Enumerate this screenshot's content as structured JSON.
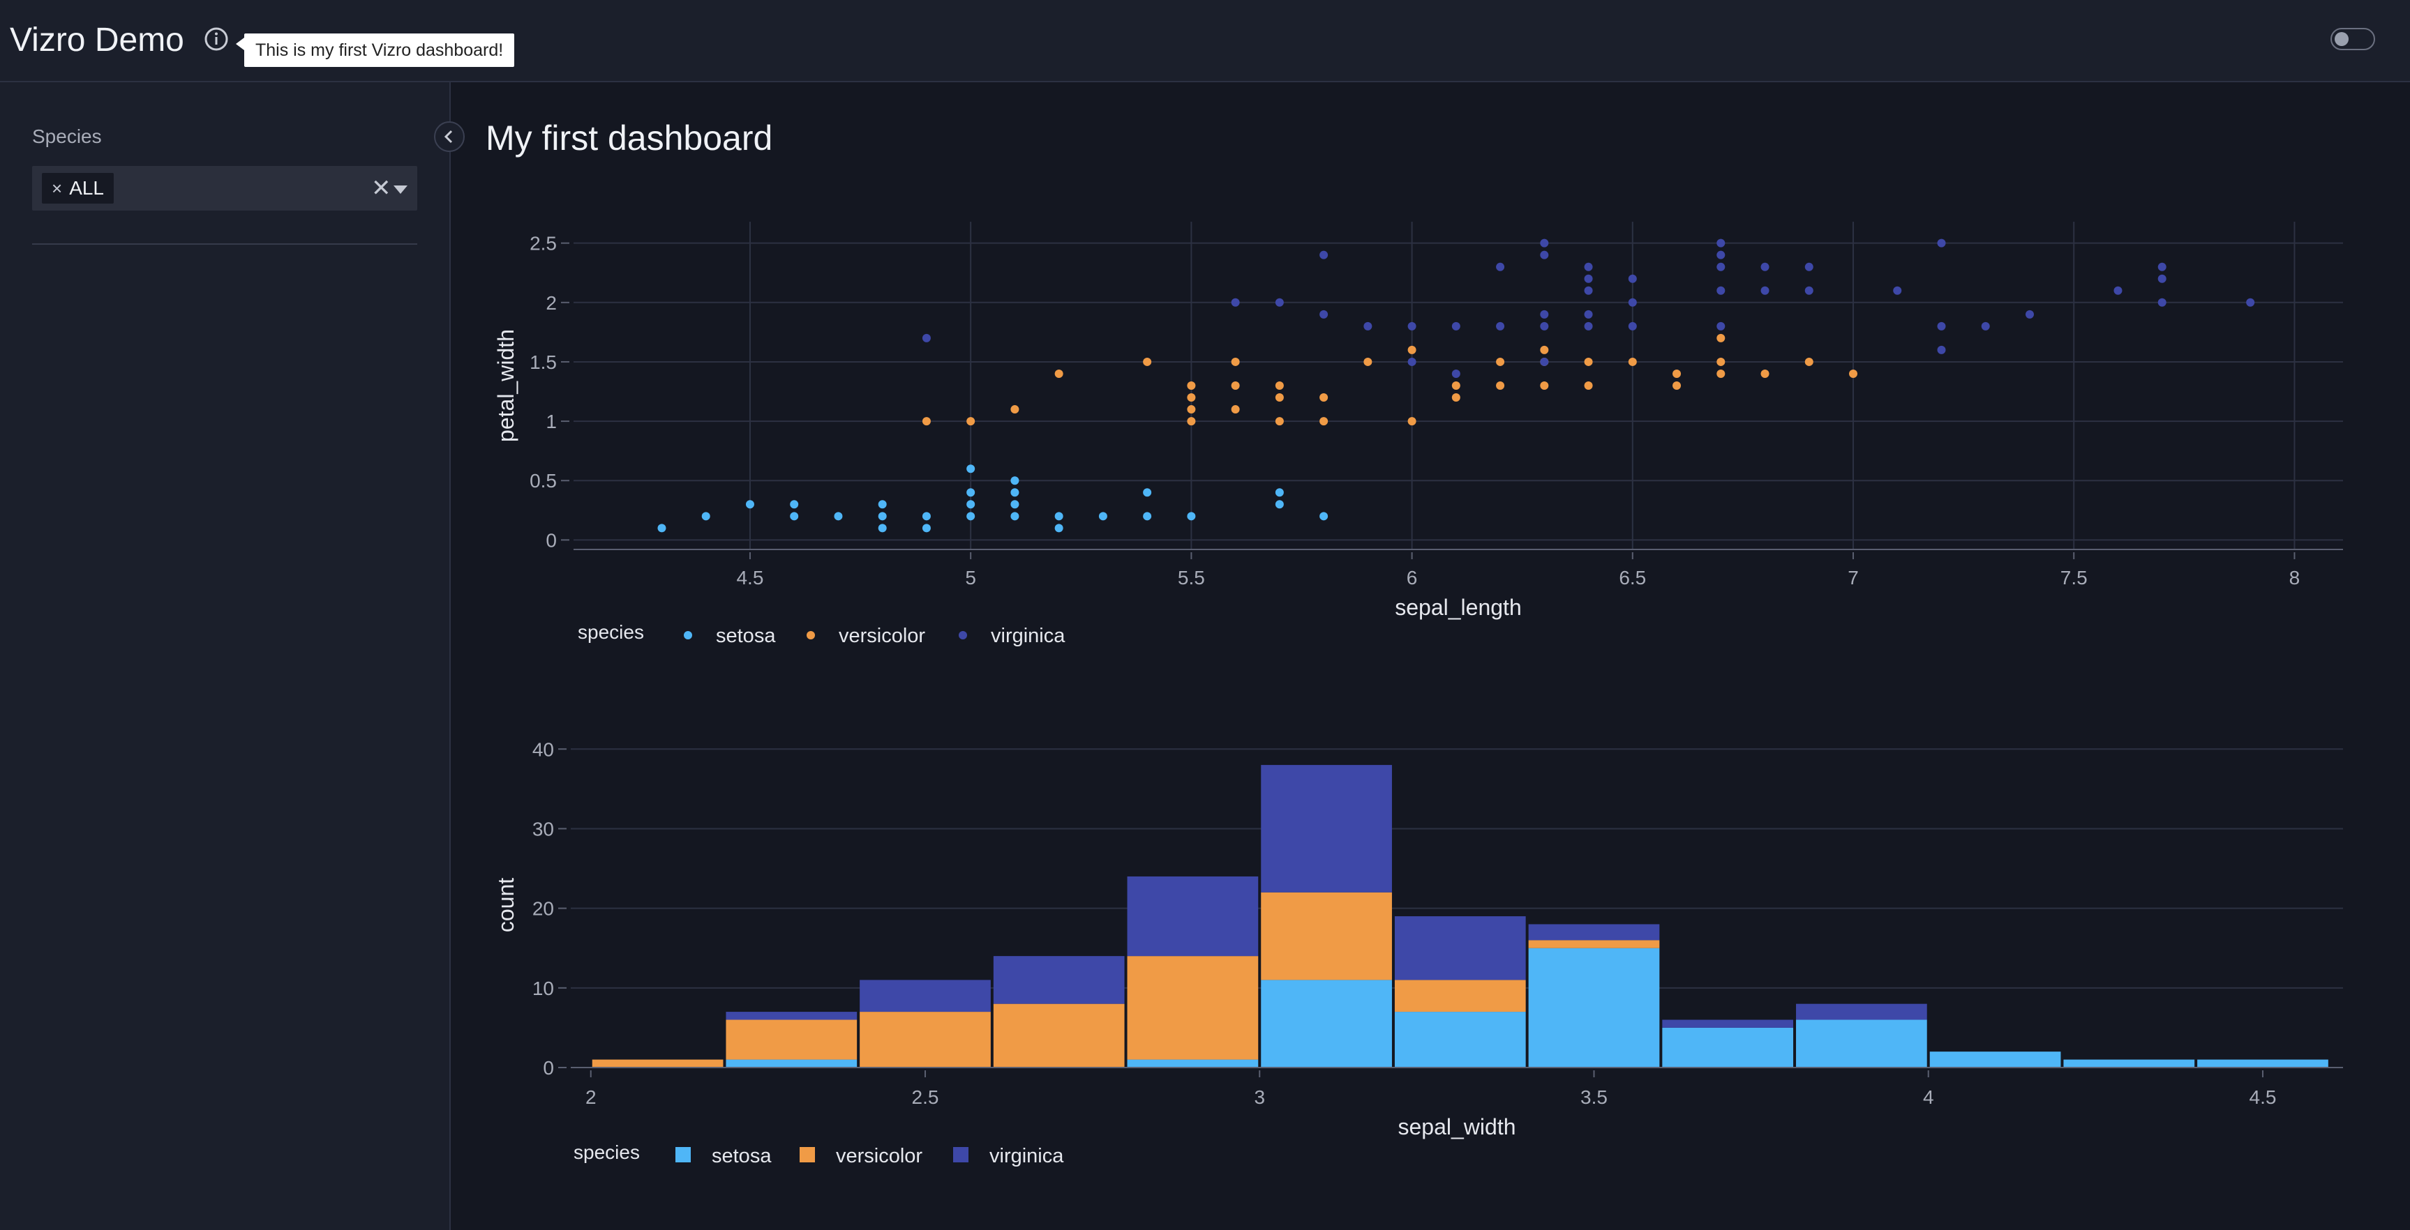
{
  "header": {
    "title": "Vizro Demo",
    "tooltip": "This is my first Vizro dashboard!",
    "info_icon": "info-icon",
    "toggle_icon": "theme-toggle"
  },
  "sidebar": {
    "filter": {
      "label": "Species",
      "selected": [
        "ALL"
      ],
      "remove_glyph": "×",
      "clear_glyph": "✕"
    }
  },
  "page": {
    "title": "My first dashboard"
  },
  "colors": {
    "setosa": "#4fb6f7",
    "versicolor": "#f09b46",
    "virginica": "#3e48a8",
    "grid": "#2c3142",
    "axis_text": "#a9adb9",
    "label_text": "#e6e8ee"
  },
  "chart_data": [
    {
      "type": "scatter",
      "title": "",
      "xlabel": "sepal_length",
      "ylabel": "petal_width",
      "xlim": [
        4.1,
        8.11
      ],
      "ylim": [
        -0.08,
        2.68
      ],
      "xticks": [
        4.5,
        5,
        5.5,
        6,
        6.5,
        7,
        7.5,
        8
      ],
      "xtick_labels": [
        "4.5",
        "5",
        "5.5",
        "6",
        "6.5",
        "7",
        "7.5",
        "8"
      ],
      "yticks": [
        0,
        0.5,
        1,
        1.5,
        2,
        2.5
      ],
      "ytick_labels": [
        "0",
        "0.5",
        "1",
        "1.5",
        "2",
        "2.5"
      ],
      "legend": {
        "title": "species",
        "position": "bottom-left"
      },
      "series": [
        {
          "name": "setosa",
          "points": [
            [
              4.3,
              0.1
            ],
            [
              4.4,
              0.2
            ],
            [
              4.5,
              0.3
            ],
            [
              4.6,
              0.2
            ],
            [
              4.6,
              0.3
            ],
            [
              4.7,
              0.2
            ],
            [
              4.8,
              0.1
            ],
            [
              4.8,
              0.2
            ],
            [
              4.8,
              0.3
            ],
            [
              4.9,
              0.1
            ],
            [
              4.9,
              0.2
            ],
            [
              5,
              0.2
            ],
            [
              5,
              0.3
            ],
            [
              5,
              0.4
            ],
            [
              5,
              0.6
            ],
            [
              5.1,
              0.2
            ],
            [
              5.1,
              0.3
            ],
            [
              5.1,
              0.4
            ],
            [
              5.1,
              0.5
            ],
            [
              5.2,
              0.1
            ],
            [
              5.2,
              0.2
            ],
            [
              5.3,
              0.2
            ],
            [
              5.4,
              0.2
            ],
            [
              5.4,
              0.4
            ],
            [
              5.5,
              0.2
            ],
            [
              5.7,
              0.3
            ],
            [
              5.7,
              0.4
            ],
            [
              5.8,
              0.2
            ]
          ]
        },
        {
          "name": "versicolor",
          "points": [
            [
              4.9,
              1.0
            ],
            [
              5.0,
              1.0
            ],
            [
              5.1,
              1.1
            ],
            [
              5.2,
              1.4
            ],
            [
              5.4,
              1.5
            ],
            [
              5.5,
              1.0
            ],
            [
              5.5,
              1.1
            ],
            [
              5.5,
              1.2
            ],
            [
              5.5,
              1.3
            ],
            [
              5.6,
              1.1
            ],
            [
              5.6,
              1.3
            ],
            [
              5.6,
              1.5
            ],
            [
              5.7,
              1.0
            ],
            [
              5.7,
              1.2
            ],
            [
              5.7,
              1.3
            ],
            [
              5.8,
              1.0
            ],
            [
              5.8,
              1.2
            ],
            [
              5.9,
              1.5
            ],
            [
              6.0,
              1.0
            ],
            [
              6.0,
              1.6
            ],
            [
              6.1,
              1.2
            ],
            [
              6.1,
              1.3
            ],
            [
              6.2,
              1.5
            ],
            [
              6.2,
              1.3
            ],
            [
              6.3,
              1.3
            ],
            [
              6.3,
              1.5
            ],
            [
              6.3,
              1.6
            ],
            [
              6.4,
              1.3
            ],
            [
              6.4,
              1.5
            ],
            [
              6.5,
              1.5
            ],
            [
              6.6,
              1.3
            ],
            [
              6.6,
              1.4
            ],
            [
              6.7,
              1.4
            ],
            [
              6.7,
              1.5
            ],
            [
              6.7,
              1.7
            ],
            [
              6.8,
              1.4
            ],
            [
              6.9,
              1.5
            ],
            [
              7.0,
              1.4
            ]
          ]
        },
        {
          "name": "virginica",
          "points": [
            [
              4.9,
              1.7
            ],
            [
              5.6,
              2.0
            ],
            [
              5.7,
              2.0
            ],
            [
              5.8,
              1.9
            ],
            [
              5.8,
              2.4
            ],
            [
              5.9,
              1.8
            ],
            [
              6.0,
              1.5
            ],
            [
              6.0,
              1.8
            ],
            [
              6.1,
              1.4
            ],
            [
              6.1,
              1.8
            ],
            [
              6.2,
              1.8
            ],
            [
              6.2,
              2.3
            ],
            [
              6.3,
              1.5
            ],
            [
              6.3,
              1.8
            ],
            [
              6.3,
              1.9
            ],
            [
              6.3,
              2.4
            ],
            [
              6.3,
              2.5
            ],
            [
              6.4,
              1.8
            ],
            [
              6.4,
              1.9
            ],
            [
              6.4,
              2.1
            ],
            [
              6.4,
              2.2
            ],
            [
              6.4,
              2.3
            ],
            [
              6.5,
              1.8
            ],
            [
              6.5,
              2.0
            ],
            [
              6.5,
              2.2
            ],
            [
              6.7,
              1.8
            ],
            [
              6.7,
              2.1
            ],
            [
              6.7,
              2.3
            ],
            [
              6.7,
              2.4
            ],
            [
              6.7,
              2.5
            ],
            [
              6.8,
              2.1
            ],
            [
              6.8,
              2.3
            ],
            [
              6.9,
              2.1
            ],
            [
              6.9,
              2.3
            ],
            [
              7.1,
              2.1
            ],
            [
              7.2,
              1.6
            ],
            [
              7.2,
              1.8
            ],
            [
              7.2,
              2.5
            ],
            [
              7.3,
              1.8
            ],
            [
              7.4,
              1.9
            ],
            [
              7.6,
              2.1
            ],
            [
              7.7,
              2.0
            ],
            [
              7.7,
              2.2
            ],
            [
              7.7,
              2.3
            ],
            [
              7.9,
              2.0
            ]
          ]
        }
      ]
    },
    {
      "type": "bar",
      "stacked": true,
      "title": "",
      "xlabel": "sepal_width",
      "ylabel": "count",
      "xlim": [
        1.97,
        4.62
      ],
      "ylim": [
        0,
        43
      ],
      "xticks": [
        2,
        2.5,
        3,
        3.5,
        4,
        4.5
      ],
      "xtick_labels": [
        "2",
        "2.5",
        "3",
        "3.5",
        "4",
        "4.5"
      ],
      "yticks": [
        0,
        10,
        20,
        30,
        40
      ],
      "ytick_labels": [
        "0",
        "10",
        "20",
        "30",
        "40"
      ],
      "bin_edges": [
        2.0,
        2.2,
        2.4,
        2.6,
        2.8,
        3.0,
        3.2,
        3.4,
        3.6,
        3.8,
        4.0,
        4.2,
        4.4,
        4.6
      ],
      "legend": {
        "title": "species",
        "position": "bottom-left"
      },
      "series": [
        {
          "name": "setosa",
          "values": [
            0,
            1,
            0,
            0,
            1,
            11,
            7,
            15,
            5,
            6,
            2,
            1,
            1
          ]
        },
        {
          "name": "versicolor",
          "values": [
            1,
            5,
            7,
            8,
            13,
            11,
            4,
            1,
            0,
            0,
            0,
            0,
            0
          ]
        },
        {
          "name": "virginica",
          "values": [
            0,
            1,
            4,
            6,
            10,
            16,
            8,
            2,
            1,
            2,
            0,
            0,
            0
          ]
        }
      ]
    }
  ]
}
